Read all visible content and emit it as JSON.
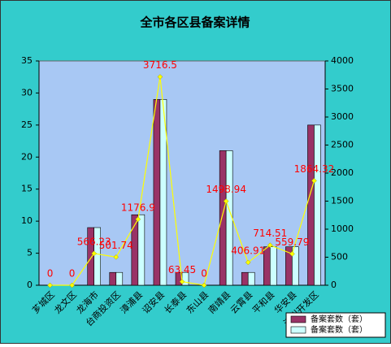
{
  "chart_data": {
    "type": "bar-line",
    "title": "全市各区县备案详情",
    "categories": [
      "芗城区",
      "龙文区",
      "龙海市",
      "台商投资区",
      "漳浦县",
      "诏安县",
      "长泰县",
      "东山县",
      "南靖县",
      "云霄县",
      "平和县",
      "华安县",
      "漳州开发区"
    ],
    "series": [
      {
        "name": "备案套数（套）",
        "color": "#993366",
        "values": [
          0,
          0,
          9,
          2,
          11,
          29,
          2,
          0,
          21,
          2,
          6,
          6,
          25
        ]
      },
      {
        "name": "备案套数（套）",
        "color": "#ccffff",
        "values": [
          0,
          0,
          9,
          2,
          11,
          29,
          2,
          0,
          21,
          2,
          6,
          6,
          25
        ]
      },
      {
        "color": "#ffff00",
        "axis": "y2",
        "values": [
          0,
          0,
          566.23,
          501.74,
          1176.9,
          3716.5,
          63.45,
          0,
          1498.94,
          406.91,
          714.51,
          559.79,
          1864.32
        ]
      }
    ],
    "ylim": [
      0,
      35
    ],
    "yticks": [
      0,
      5,
      10,
      15,
      20,
      25,
      30,
      35
    ],
    "y2lim": [
      0,
      4000
    ],
    "y2ticks": [
      0,
      500,
      1000,
      1500,
      2000,
      2500,
      3000,
      3500,
      4000
    ],
    "legend": "bottom-right"
  }
}
